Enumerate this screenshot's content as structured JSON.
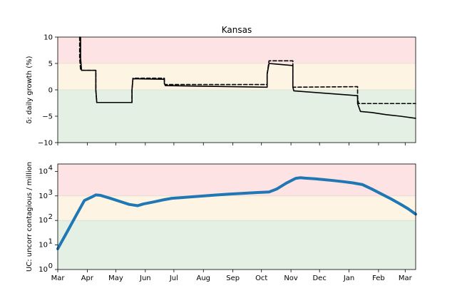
{
  "chart_data": [
    {
      "type": "line",
      "title": "Kansas",
      "ylabel": "δ: daily growth (%)",
      "ylim": [
        -10,
        10
      ],
      "yticks": [
        -10,
        -5,
        0,
        5,
        10
      ],
      "xlim": [
        0,
        376
      ],
      "bands": [
        {
          "from": 5,
          "to": 10,
          "color": "#fde3e3"
        },
        {
          "from": 0,
          "to": 5,
          "color": "#fdf4e3"
        },
        {
          "from": -10,
          "to": 0,
          "color": "#e4f0e4"
        }
      ],
      "series": [
        {
          "style": "solid",
          "color": "#000000",
          "x": [
            24,
            24,
            25,
            40,
            40,
            41,
            78,
            78,
            79,
            112,
            112,
            113,
            220,
            220,
            222,
            247,
            247,
            248,
            315,
            315,
            318,
            330,
            345,
            360,
            376
          ],
          "y": [
            10,
            6,
            3.7,
            3.7,
            0,
            -2.4,
            -2.4,
            0,
            2.1,
            2.0,
            1.2,
            0.8,
            0.5,
            3,
            5.0,
            4.6,
            0.5,
            -0.2,
            -1.1,
            -2.6,
            -4.1,
            -4.3,
            -4.7,
            -5.0,
            -5.4
          ]
        },
        {
          "style": "dashed",
          "color": "#000000",
          "x": [
            23,
            23,
            24,
            40,
            40,
            41,
            78,
            78,
            79,
            112,
            112,
            113,
            220,
            220,
            222,
            247,
            247,
            248,
            315,
            315,
            316,
            376
          ],
          "y": [
            10,
            6,
            3.7,
            3.7,
            0,
            -2.4,
            -2.4,
            0,
            2.2,
            2.2,
            1.2,
            1.0,
            1.0,
            3,
            5.5,
            5.5,
            0.5,
            0.5,
            0.6,
            -1.5,
            -2.6,
            -2.6
          ]
        }
      ]
    },
    {
      "type": "line",
      "scale": "log",
      "ylabel": "UC: uncorr contagious / million",
      "ylim": [
        1,
        20000
      ],
      "yticks": [
        1,
        10,
        100,
        1000,
        10000
      ],
      "ytick_labels": [
        "10",
        "10",
        "10",
        "10",
        "10"
      ],
      "ytick_exponents": [
        "0",
        "1",
        "2",
        "3",
        "4"
      ],
      "xlim": [
        0,
        376
      ],
      "bands": [
        {
          "from": 1000,
          "to": 20000,
          "color": "#fde3e3"
        },
        {
          "from": 100,
          "to": 1000,
          "color": "#fdf4e3"
        },
        {
          "from": 1,
          "to": 100,
          "color": "#e4f0e4"
        }
      ],
      "x_categories": [
        "Mar",
        "Apr",
        "May",
        "Jun",
        "Jul",
        "Aug",
        "Sep",
        "Oct",
        "Nov",
        "Dec",
        "Jan",
        "Feb",
        "Mar"
      ],
      "x_tick_days": [
        0,
        31,
        61,
        92,
        122,
        153,
        184,
        214,
        245,
        275,
        306,
        337,
        365
      ],
      "series": [
        {
          "style": "solid",
          "color": "#1f77b4",
          "x": [
            0,
            10,
            20,
            28,
            35,
            40,
            45,
            55,
            65,
            75,
            84,
            90,
            100,
            110,
            120,
            135,
            150,
            165,
            180,
            195,
            210,
            222,
            230,
            240,
            250,
            255,
            260,
            270,
            280,
            290,
            300,
            310,
            320,
            330,
            340,
            350,
            360,
            368,
            376
          ],
          "y": [
            7,
            35,
            180,
            650,
            870,
            1100,
            1050,
            800,
            600,
            450,
            400,
            470,
            560,
            680,
            800,
            880,
            980,
            1080,
            1180,
            1280,
            1380,
            1450,
            1900,
            3300,
            5200,
            5500,
            5300,
            5000,
            4600,
            4200,
            3800,
            3400,
            2900,
            1900,
            1200,
            760,
            460,
            300,
            180
          ]
        }
      ]
    }
  ]
}
